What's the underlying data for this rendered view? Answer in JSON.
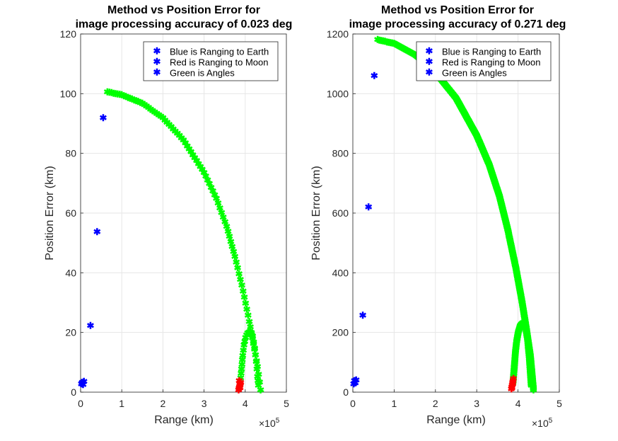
{
  "chart_data": [
    {
      "type": "scatter",
      "title_line1": "Method vs Position Error for",
      "title_line2": "image processing accuracy of 0.023 deg",
      "xlabel": "Range (km)",
      "ylabel": "Position Error (km)",
      "x_exponent_label": "×10",
      "x_exponent": "5",
      "xlim": [
        0,
        500000
      ],
      "ylim": [
        0,
        120
      ],
      "xticks": [
        0,
        100000,
        200000,
        300000,
        400000,
        500000
      ],
      "xtick_labels": [
        "0",
        "1",
        "2",
        "3",
        "4",
        "5"
      ],
      "yticks": [
        0,
        20,
        40,
        60,
        80,
        100,
        120
      ],
      "ytick_labels": [
        "0",
        "20",
        "40",
        "60",
        "80",
        "100",
        "120"
      ],
      "grid": true,
      "legend_position": "top-right",
      "legend": [
        "Blue is Ranging to Earth",
        "Red is Ranging to Moon",
        "Green is Angles"
      ],
      "series": [
        {
          "color": "#0000ff",
          "x": [
            2000,
            4000,
            6000,
            8000,
            24000,
            40000,
            55000
          ],
          "y": [
            2.5,
            3.0,
            2.2,
            3.3,
            22,
            53.5,
            91.7
          ]
        },
        {
          "color": "#ff0000",
          "x": [
            384000,
            385000,
            386000,
            387000,
            388000,
            389000,
            385500,
            387500
          ],
          "y": [
            0.5,
            1.0,
            1.5,
            2.0,
            2.5,
            3.0,
            3.5,
            1.2
          ]
        },
        {
          "color": "#00ff00",
          "curve": [
            [
              65000,
              100.3
            ],
            [
              100000,
              99.3
            ],
            [
              150000,
              96.5
            ],
            [
              200000,
              91.6
            ],
            [
              250000,
              84.2
            ],
            [
              300000,
              73.3
            ],
            [
              330000,
              64.6
            ],
            [
              355000,
              55.2
            ],
            [
              375000,
              45.2
            ],
            [
              395000,
              33.6
            ],
            [
              410000,
              23.4
            ],
            [
              420000,
              16.0
            ],
            [
              430000,
              8.3
            ],
            [
              437500,
              0.5
            ]
          ],
          "arc": [
            [
              388000,
              3.0
            ],
            [
              390000,
              6.0
            ],
            [
              392000,
              9.0
            ],
            [
              394000,
              12.0
            ],
            [
              397000,
              15.5
            ],
            [
              401000,
              18.0
            ],
            [
              406000,
              19.6
            ],
            [
              412000,
              19.9
            ],
            [
              418000,
              18.5
            ],
            [
              423000,
              14.5
            ],
            [
              427000,
              10.0
            ],
            [
              430000,
              5.0
            ],
            [
              432000,
              2.0
            ]
          ]
        }
      ]
    },
    {
      "type": "scatter",
      "title_line1": "Method vs Position Error for",
      "title_line2": "image processing accuracy of 0.271 deg",
      "xlabel": "Range (km)",
      "ylabel": "Position Error (km)",
      "x_exponent_label": "×10",
      "x_exponent": "5",
      "xlim": [
        0,
        500000
      ],
      "ylim": [
        0,
        1200
      ],
      "xticks": [
        0,
        100000,
        200000,
        300000,
        400000,
        500000
      ],
      "xtick_labels": [
        "0",
        "1",
        "2",
        "3",
        "4",
        "5"
      ],
      "yticks": [
        0,
        200,
        400,
        600,
        800,
        1000,
        1200
      ],
      "ytick_labels": [
        "0",
        "200",
        "400",
        "600",
        "800",
        "1000",
        "1200"
      ],
      "grid": true,
      "legend_position": "top-right",
      "legend": [
        "Blue is Ranging to Earth",
        "Red is Ranging to Moon",
        "Green is Angles"
      ],
      "series": [
        {
          "color": "#0000ff",
          "x": [
            2000,
            4000,
            6000,
            8000,
            24000,
            38000,
            52000
          ],
          "y": [
            25,
            35,
            28,
            38,
            255,
            618,
            1057
          ]
        },
        {
          "color": "#ff0000",
          "x": [
            384000,
            385000,
            386000,
            387000,
            388000,
            389000,
            385500,
            387500
          ],
          "y": [
            8,
            15,
            22,
            30,
            36,
            42,
            12,
            25
          ]
        },
        {
          "color": "#00ff00",
          "curve": [
            [
              60000,
              1178
            ],
            [
              100000,
              1165
            ],
            [
              150000,
              1128
            ],
            [
              200000,
              1068
            ],
            [
              250000,
              982
            ],
            [
              300000,
              857
            ],
            [
              330000,
              760
            ],
            [
              355000,
              654
            ],
            [
              375000,
              543
            ],
            [
              395000,
              412
            ],
            [
              410000,
              298
            ],
            [
              420000,
              212
            ],
            [
              430000,
              120
            ],
            [
              437500,
              5
            ]
          ],
          "arc": [
            [
              388000,
              30
            ],
            [
              390000,
              65
            ],
            [
              392000,
              100
            ],
            [
              394000,
              135
            ],
            [
              397000,
              170
            ],
            [
              401000,
              200
            ],
            [
              406000,
              222
            ],
            [
              412000,
              230
            ],
            [
              418000,
              218
            ],
            [
              423000,
              175
            ],
            [
              427000,
              120
            ],
            [
              430000,
              60
            ],
            [
              432000,
              20
            ]
          ]
        }
      ]
    }
  ]
}
